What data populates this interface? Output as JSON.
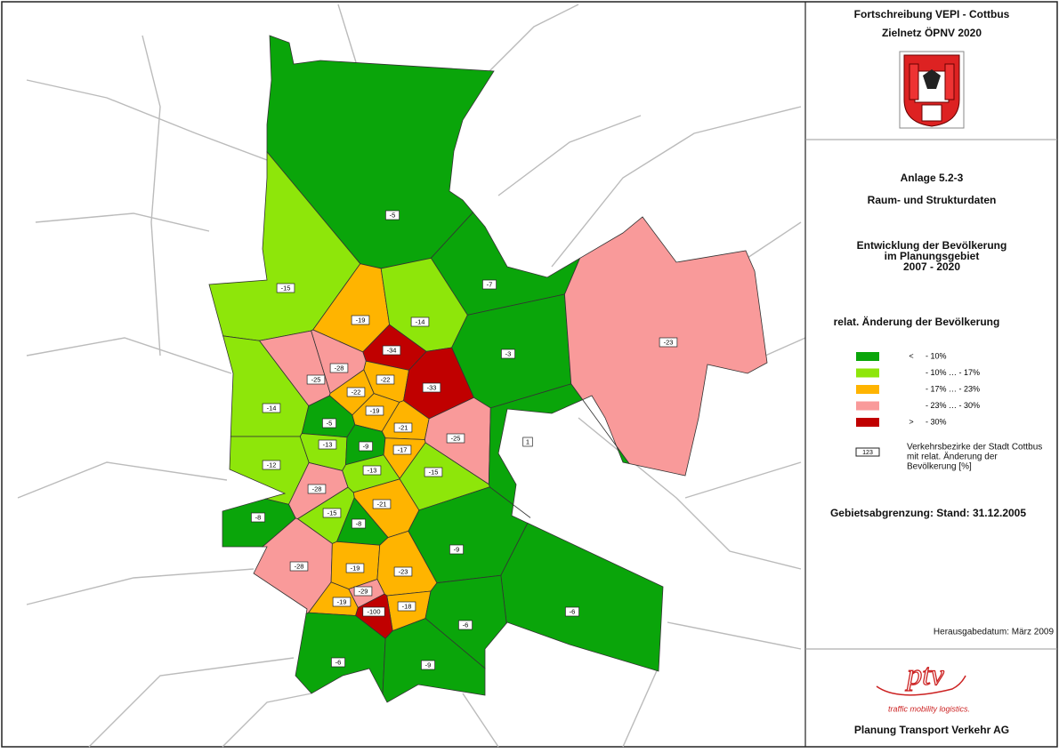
{
  "header": {
    "title": "Fortschreibung VEPI - Cottbus",
    "subtitle": "Zielnetz ÖPNV 2020"
  },
  "annex": "Anlage 5.2-3",
  "section": "Raum- und Strukturdaten",
  "map_title": [
    "Entwicklung der Bevölkerung",
    "im Planungsgebiet",
    "2007 - 2020"
  ],
  "legend": {
    "title": "relat. Änderung der Bevölkerung",
    "items": [
      {
        "symbol": "<",
        "label": "- 10%",
        "color": "#0aa50a"
      },
      {
        "label": "- 10% … - 17%",
        "color": "#8ee60a"
      },
      {
        "label": "- 17% … - 23%",
        "color": "#ffb400"
      },
      {
        "label": "- 23% … - 30%",
        "color": "#f99a9a"
      },
      {
        "symbol": ">",
        "label": "- 30%",
        "color": "#c00000"
      }
    ],
    "box_sample": "123",
    "box_text": [
      "Verkehrsbezirke der Stadt Cottbus",
      "mit relat. Änderung der",
      "Bevölkerung [%]"
    ]
  },
  "boundary_note": "Gebietsabgrenzung: Stand: 31.12.2005",
  "issue_date": "Herausgabedatum: März 2009",
  "logo": {
    "mark": "ptv",
    "tagline": "traffic mobility logistics."
  },
  "company": "Planung Transport Verkehr AG",
  "districts": [
    {
      "label": "-5",
      "class": 0
    },
    {
      "label": "-15",
      "class": 1
    },
    {
      "label": "-7",
      "class": 0
    },
    {
      "label": "-19",
      "class": 2
    },
    {
      "label": "-14",
      "class": 1
    },
    {
      "label": "-34",
      "class": 4
    },
    {
      "label": "-3",
      "class": 0
    },
    {
      "label": "-23",
      "class": 3
    },
    {
      "label": "-28",
      "class": 3
    },
    {
      "label": "-25",
      "class": 3
    },
    {
      "label": "-22",
      "class": 2
    },
    {
      "label": "-22",
      "class": 2
    },
    {
      "label": "-33",
      "class": 4
    },
    {
      "label": "-14",
      "class": 1
    },
    {
      "label": "-5",
      "class": 0
    },
    {
      "label": "-19",
      "class": 2
    },
    {
      "label": "-21",
      "class": 2
    },
    {
      "label": "-25",
      "class": 3
    },
    {
      "label": "1",
      "class": 0
    },
    {
      "label": "-13",
      "class": 1
    },
    {
      "label": "-9",
      "class": 0
    },
    {
      "label": "-17",
      "class": 2
    },
    {
      "label": "-12",
      "class": 1
    },
    {
      "label": "-13",
      "class": 1
    },
    {
      "label": "-15",
      "class": 1
    },
    {
      "label": "-28",
      "class": 3
    },
    {
      "label": "-21",
      "class": 2
    },
    {
      "label": "-15",
      "class": 1
    },
    {
      "label": "-8",
      "class": 0
    },
    {
      "label": "-8",
      "class": 0
    },
    {
      "label": "-9",
      "class": 0
    },
    {
      "label": "-28",
      "class": 3
    },
    {
      "label": "-19",
      "class": 2
    },
    {
      "label": "-23",
      "class": 2
    },
    {
      "label": "-6",
      "class": 0
    },
    {
      "label": "-29",
      "class": 3
    },
    {
      "label": "-19",
      "class": 2
    },
    {
      "label": "-18",
      "class": 2
    },
    {
      "label": "-100",
      "class": 4
    },
    {
      "label": "-6",
      "class": 0
    },
    {
      "label": "-6",
      "class": 0
    },
    {
      "label": "-9",
      "class": 0
    }
  ]
}
